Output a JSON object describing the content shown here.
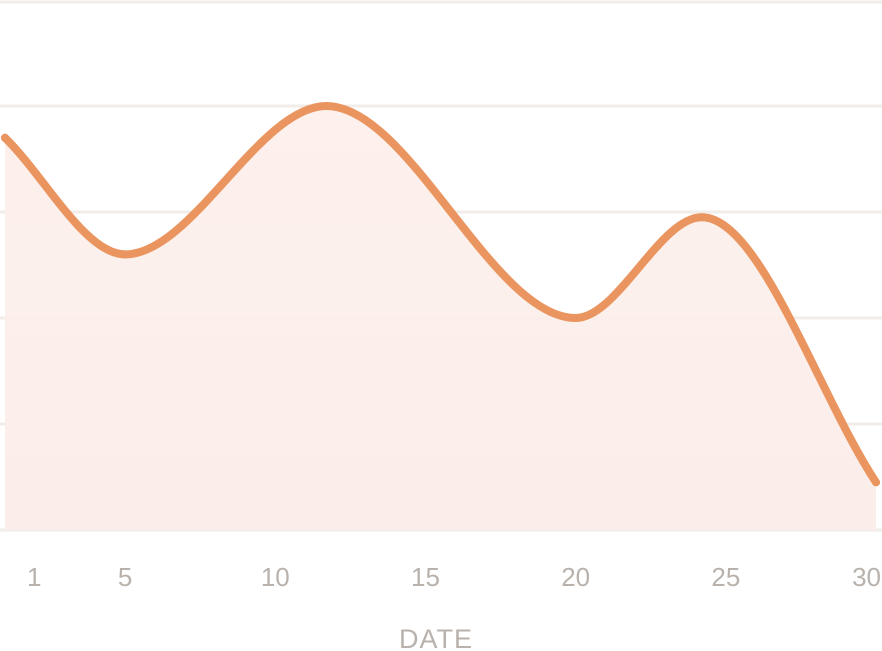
{
  "chart_data": {
    "type": "area",
    "xlabel": "DATE",
    "ylabel": "",
    "title": "",
    "x_ticks": [
      "1",
      "5",
      "10",
      "15",
      "20",
      "25",
      "30"
    ],
    "xlim": [
      1,
      30
    ],
    "ylim": [
      0,
      5
    ],
    "grid": true,
    "legend": "none",
    "series": [
      {
        "x": [
          1,
          5,
          11.7,
          20,
          24.2,
          30
        ],
        "values": [
          3.7,
          2.6,
          4.0,
          2.0,
          2.95,
          0.45
        ]
      }
    ],
    "colors": {
      "line": "#ea955f",
      "fill_top": "#fdf0ec",
      "fill_bottom": "#fbeeea",
      "grid": "#f2ede8",
      "tick_text": "#b9b2ac"
    }
  }
}
